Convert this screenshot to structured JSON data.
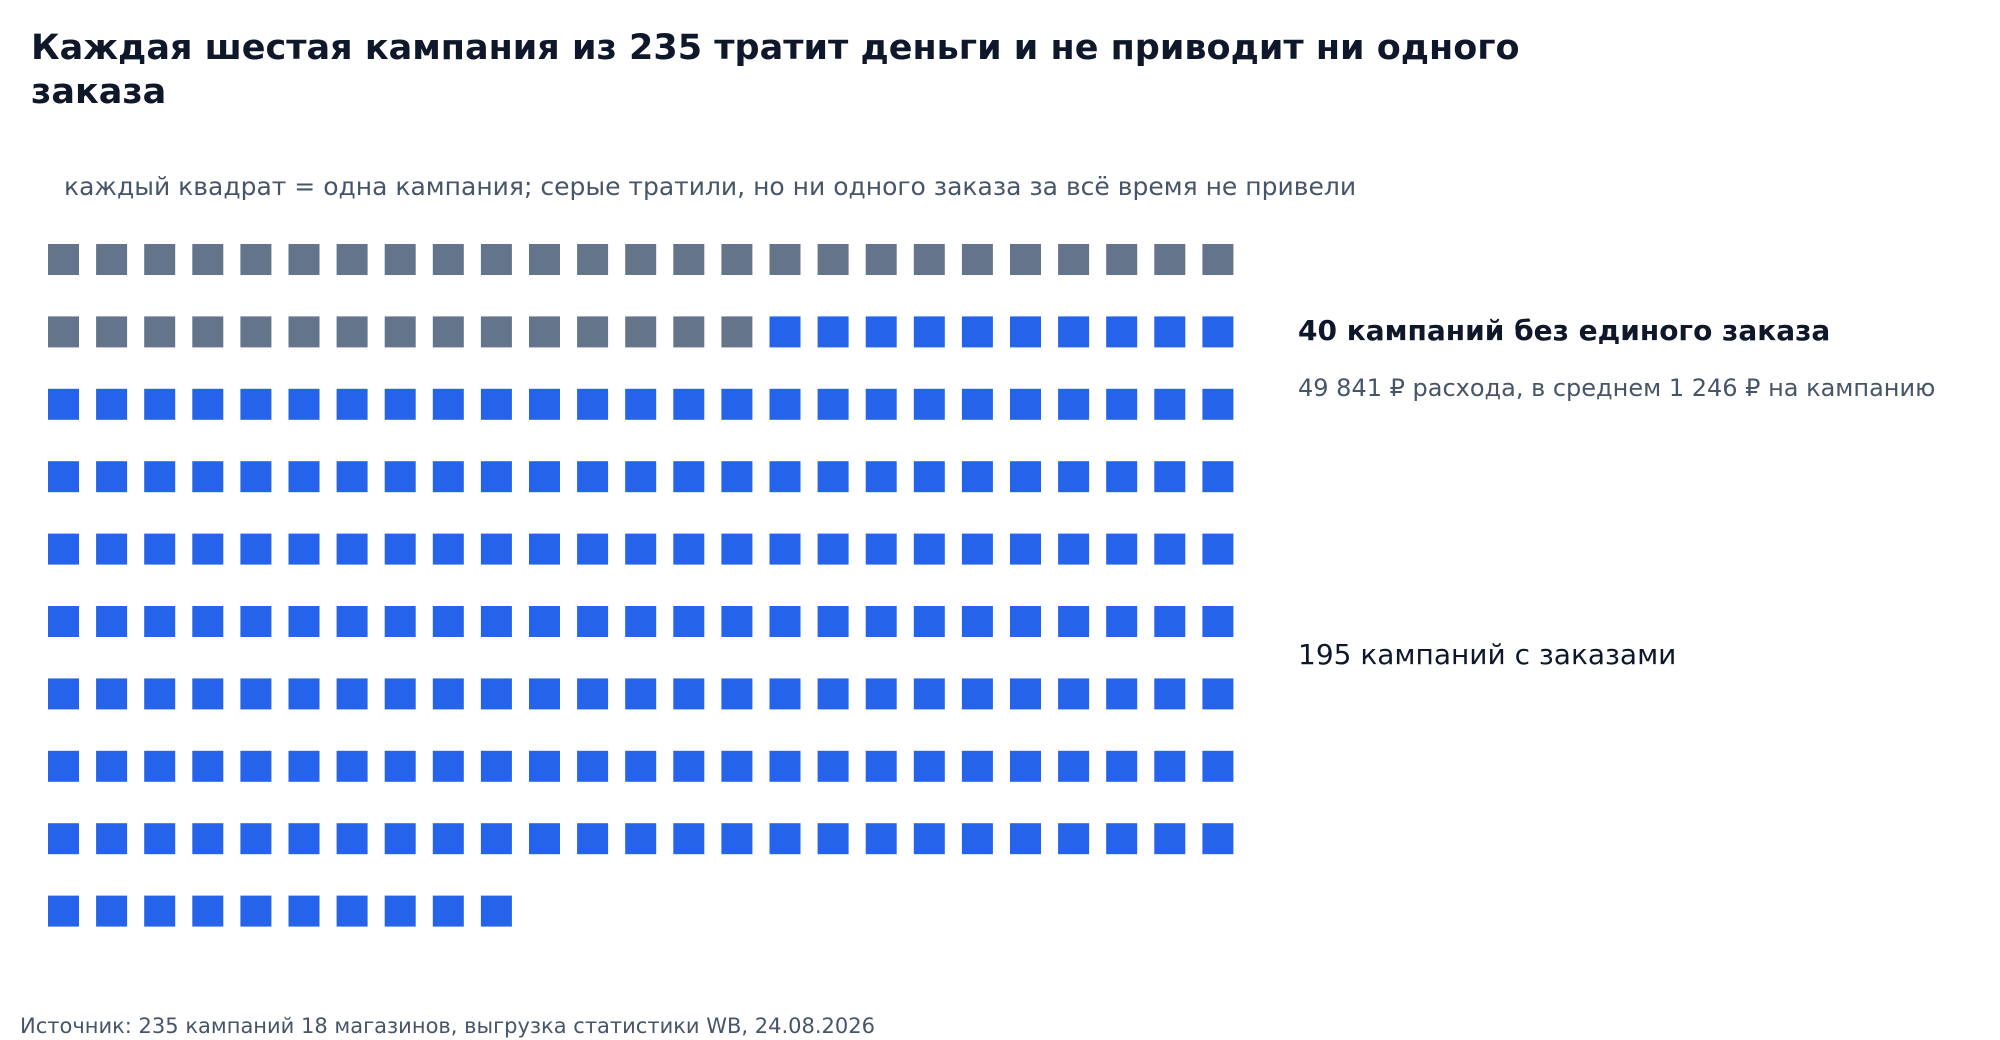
{
  "title": "Каждая шестая кампания из 235 тратит деньги и не приводит ни одного заказа",
  "subtitle": "каждый квадрат = одна кампания; серые тратили, но ни одного заказа за всё время не привели",
  "annotations": {
    "no_orders_title": "40 кампаний без единого заказа",
    "no_orders_detail": "49 841 ₽ расхода, в среднем 1 246 ₽ на кампанию",
    "with_orders": "195 кампаний с заказами"
  },
  "source": "Источник: 235 кампаний 18 магазинов, выгрузка статистики WB, 24.08.2026",
  "colors": {
    "no_orders": "#64748b",
    "with_orders": "#2563eb"
  },
  "chart_data": {
    "type": "waffle",
    "total": 235,
    "columns": 25,
    "categories": [
      {
        "key": "no_orders",
        "count": 40
      },
      {
        "key": "with_orders",
        "count": 195
      }
    ]
  }
}
